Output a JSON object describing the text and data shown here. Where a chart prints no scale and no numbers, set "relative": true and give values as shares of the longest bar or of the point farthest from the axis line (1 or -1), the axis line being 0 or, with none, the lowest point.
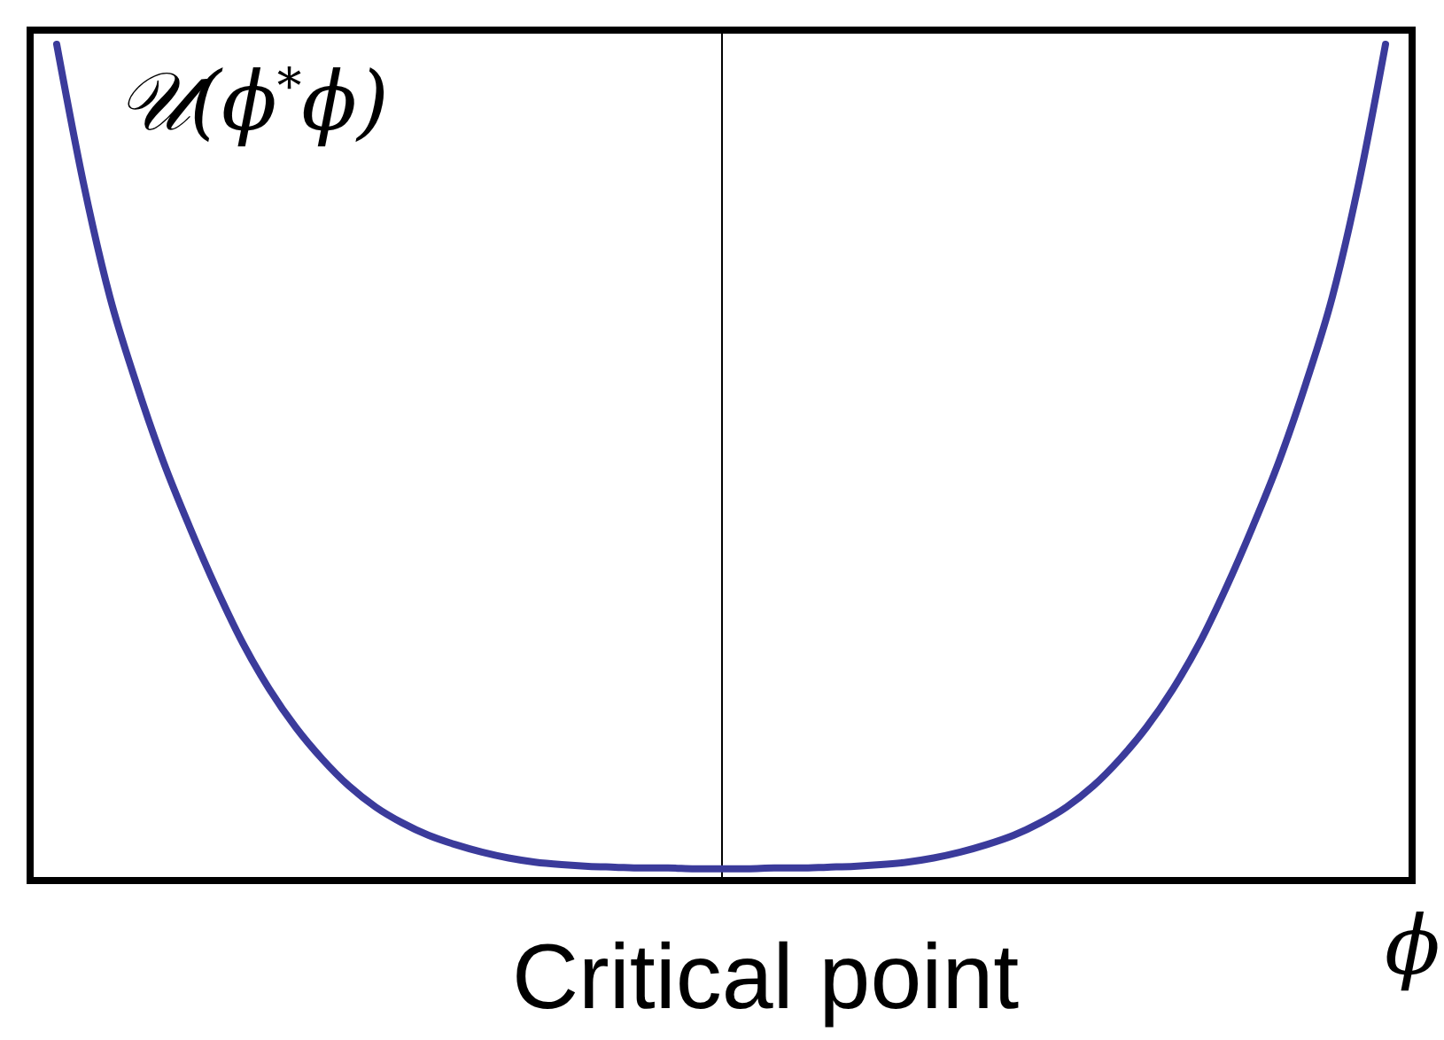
{
  "chart_data": {
    "type": "line",
    "title": "Critical point",
    "xlabel": "ϕ",
    "ylabel": "𝒰(ϕ$^{*}$ϕ)",
    "relative": true,
    "color": "#3b3b9b",
    "categories": [
      null,
      null,
      null,
      null,
      null,
      null,
      null,
      null,
      null,
      null,
      null,
      null,
      null,
      null,
      null,
      null,
      null,
      null,
      null,
      null,
      null,
      null,
      null,
      null,
      null,
      null,
      null,
      null,
      null,
      null,
      null,
      null,
      null,
      null,
      null,
      null,
      null,
      null,
      null,
      null,
      null,
      null,
      null,
      null,
      null,
      null,
      null,
      null,
      null,
      null,
      null
    ],
    "values": [
      1,
      0.835,
      0.698,
      0.594,
      0.502,
      0.423,
      0.35,
      0.284,
      0.229,
      0.183,
      0.145,
      0.113,
      0.088,
      0.069,
      0.054,
      0.043,
      0.034,
      0.027,
      0.022,
      0.019,
      0.017,
      0.016,
      0.015,
      0.015,
      0.014,
      0.014,
      0.014,
      0.015,
      0.015,
      0.016,
      0.017,
      0.019,
      0.022,
      0.027,
      0.034,
      0.043,
      0.054,
      0.069,
      0.088,
      0.113,
      0.145,
      0.183,
      0.229,
      0.284,
      0.35,
      0.423,
      0.502,
      0.594,
      0.698,
      0.835,
      1
    ]
  }
}
